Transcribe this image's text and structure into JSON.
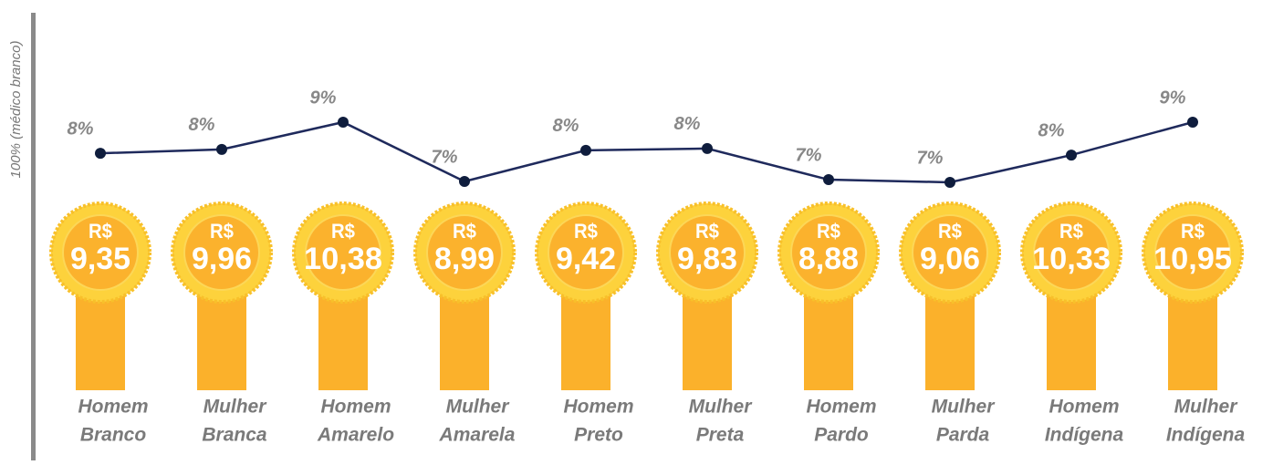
{
  "chart_data": {
    "type": "line",
    "y_axis_label": "100% (médico branco)",
    "categories": [
      [
        "Homem",
        "Branco"
      ],
      [
        "Mulher",
        "Branca"
      ],
      [
        "Homem",
        "Amarelo"
      ],
      [
        "Mulher",
        "Amarela"
      ],
      [
        "Homem",
        "Preto"
      ],
      [
        "Mulher",
        "Preta"
      ],
      [
        "Homem",
        "Pardo"
      ],
      [
        "Mulher",
        "Parda"
      ],
      [
        "Homem",
        "Indígena"
      ],
      [
        "Mulher",
        "Indígena"
      ]
    ],
    "series": [
      {
        "color": "#1f2a5c",
        "values": [
          7.95,
          8.08,
          9.0,
          7.0,
          8.05,
          8.11,
          7.06,
          6.97,
          7.89,
          9.0
        ],
        "value_labels": [
          "8%",
          "8%",
          "9%",
          "7%",
          "8%",
          "8%",
          "7%",
          "7%",
          "8%",
          "9%"
        ]
      },
      {
        "currency_prefix": "R$",
        "color": "#fbb12b",
        "values": [
          9.35,
          9.96,
          10.38,
          8.99,
          9.42,
          9.83,
          8.88,
          9.06,
          10.33,
          10.95
        ],
        "value_labels": [
          "9,35",
          "9,96",
          "10,38",
          "8,99",
          "9,42",
          "9,83",
          "8,88",
          "9,06",
          "10,33",
          "10,95"
        ]
      }
    ],
    "ylim": [
      5,
      10
    ]
  }
}
